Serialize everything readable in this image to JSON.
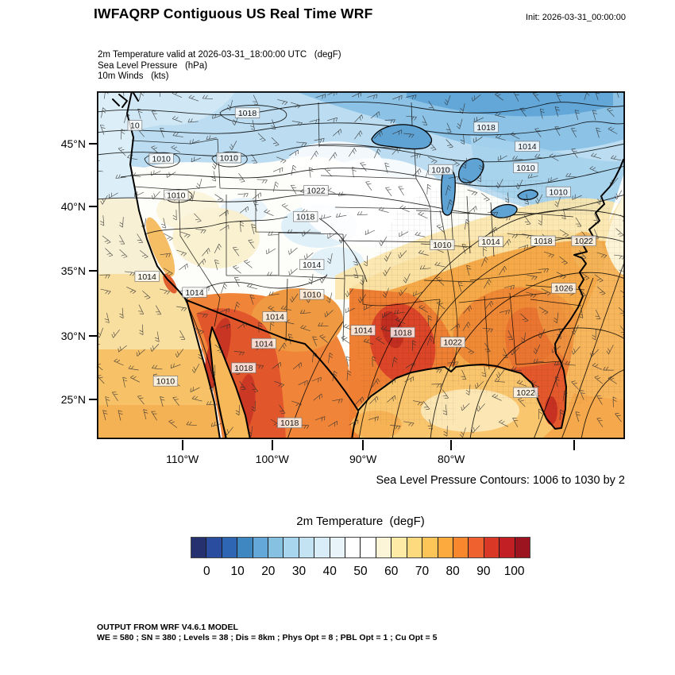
{
  "header": {
    "title": "IWFAQRP Contiguous US Real Time WRF",
    "init_label": "Init: 2026-03-31_00:00:00"
  },
  "subtitle": {
    "lines": [
      "2m Temperature valid at 2026-03-31_18:00:00 UTC   (degF)",
      "Sea Level Pressure   (hPa)",
      "10m Winds   (kts)"
    ]
  },
  "caption": "Sea Level Pressure Contours: 1006 to 1030 by 2",
  "footer": {
    "line1": "OUTPUT FROM WRF V4.6.1 MODEL",
    "line2": "WE = 580 ; SN = 380 ; Levels = 38 ; Dis = 8km ; Phys Opt = 8 ; PBL Opt = 1 ; Cu Opt = 5"
  },
  "chart_data": {
    "type": "heatmap",
    "subtype": "weather-model-contour-map",
    "title": "IWFAQRP Contiguous US Real Time WRF",
    "init_time": "2026-03-31_00:00:00",
    "valid_time": "2026-03-31_18:00:00 UTC",
    "fields": [
      "2m Temperature (degF)",
      "Sea Level Pressure (hPa)",
      "10m Winds (kts)"
    ],
    "region": "Contiguous US",
    "lat_ticks": [
      {
        "label": "45°N",
        "f": 0.151
      },
      {
        "label": "40°N",
        "f": 0.331
      },
      {
        "label": "35°N",
        "f": 0.516
      },
      {
        "label": "30°N",
        "f": 0.703
      },
      {
        "label": "25°N",
        "f": 0.886
      }
    ],
    "lon_ticks": [
      {
        "label": "110°W",
        "f": 0.162
      },
      {
        "label": "100°W",
        "f": 0.332
      },
      {
        "label": "90°W",
        "f": 0.504
      },
      {
        "label": "80°W",
        "f": 0.671
      },
      {
        "label": "",
        "f": 0.904
      }
    ],
    "slp_contours": {
      "min": 1006,
      "max": 1030,
      "interval": 2
    },
    "slp_labels_on_map": [
      {
        "v": "1018",
        "fx": 0.285,
        "fy": 0.062
      },
      {
        "v": "10",
        "fx": 0.072,
        "fy": 0.098
      },
      {
        "v": "1018",
        "fx": 0.737,
        "fy": 0.103
      },
      {
        "v": "1014",
        "fx": 0.815,
        "fy": 0.158
      },
      {
        "v": "1010",
        "fx": 0.812,
        "fy": 0.22
      },
      {
        "v": "1010",
        "fx": 0.874,
        "fy": 0.289
      },
      {
        "v": "1010",
        "fx": 0.122,
        "fy": 0.193
      },
      {
        "v": "1010",
        "fx": 0.25,
        "fy": 0.191
      },
      {
        "v": "1022",
        "fx": 0.415,
        "fy": 0.285
      },
      {
        "v": "1018",
        "fx": 0.395,
        "fy": 0.36
      },
      {
        "v": "1010",
        "fx": 0.15,
        "fy": 0.298
      },
      {
        "v": "1010",
        "fx": 0.651,
        "fy": 0.225
      },
      {
        "v": "1010",
        "fx": 0.654,
        "fy": 0.441
      },
      {
        "v": "1014",
        "fx": 0.746,
        "fy": 0.432
      },
      {
        "v": "1018",
        "fx": 0.845,
        "fy": 0.43
      },
      {
        "v": "1022",
        "fx": 0.922,
        "fy": 0.43
      },
      {
        "v": "1026",
        "fx": 0.884,
        "fy": 0.566
      },
      {
        "v": "1014",
        "fx": 0.407,
        "fy": 0.498
      },
      {
        "v": "1014",
        "fx": 0.095,
        "fy": 0.532
      },
      {
        "v": "1014",
        "fx": 0.185,
        "fy": 0.578
      },
      {
        "v": "1010",
        "fx": 0.407,
        "fy": 0.584
      },
      {
        "v": "1014",
        "fx": 0.337,
        "fy": 0.648
      },
      {
        "v": "1014",
        "fx": 0.316,
        "fy": 0.725
      },
      {
        "v": "1018",
        "fx": 0.278,
        "fy": 0.795
      },
      {
        "v": "1014",
        "fx": 0.504,
        "fy": 0.687
      },
      {
        "v": "1018",
        "fx": 0.579,
        "fy": 0.693
      },
      {
        "v": "1022",
        "fx": 0.674,
        "fy": 0.721
      },
      {
        "v": "1022",
        "fx": 0.812,
        "fy": 0.866
      },
      {
        "v": "1010",
        "fx": 0.13,
        "fy": 0.833
      },
      {
        "v": "1018",
        "fx": 0.365,
        "fy": 0.953
      }
    ],
    "colorbar": {
      "title": "2m Temperature  (degF)",
      "units": "degF",
      "tick_values": [
        0,
        10,
        20,
        30,
        40,
        50,
        60,
        70,
        80,
        90,
        100
      ],
      "cell_size_degF": 5,
      "colors": [
        "#26316f",
        "#2a4d9f",
        "#2f66b3",
        "#3f87c1",
        "#63a8d8",
        "#86c1e2",
        "#a8d6ee",
        "#c3e3f3",
        "#d9edf8",
        "#e9f4fa",
        "#ffffff",
        "#ffffff",
        "#fdf5d7",
        "#fdeba6",
        "#feda7e",
        "#fdc457",
        "#fca93e",
        "#f9872d",
        "#ef612f",
        "#d93826",
        "#c11f24",
        "#9b1420"
      ]
    },
    "wind_barbs": {
      "spacing": 24,
      "length": 13,
      "color": "#2e2e2e"
    }
  }
}
